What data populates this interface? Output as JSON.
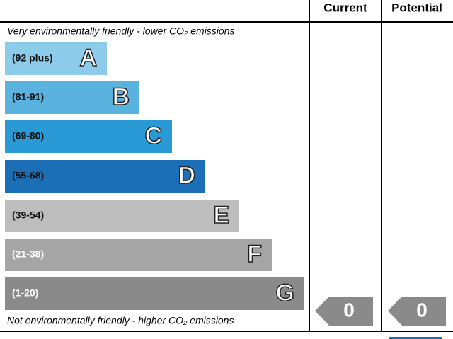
{
  "header": {
    "current": "Current",
    "potential": "Potential"
  },
  "top_note": "Very environmentally friendly - lower CO₂ emissions",
  "bottom_note": "Not environmentally friendly - higher CO₂ emissions",
  "bands": [
    {
      "range": "(92 plus)",
      "letter": "A"
    },
    {
      "range": "(81-91)",
      "letter": "B"
    },
    {
      "range": "(69-80)",
      "letter": "C"
    },
    {
      "range": "(55-68)",
      "letter": "D"
    },
    {
      "range": "(39-54)",
      "letter": "E"
    },
    {
      "range": "(21-38)",
      "letter": "F"
    },
    {
      "range": "(1-20)",
      "letter": "G"
    }
  ],
  "current": {
    "value": 0
  },
  "potential": {
    "value": 0
  }
}
